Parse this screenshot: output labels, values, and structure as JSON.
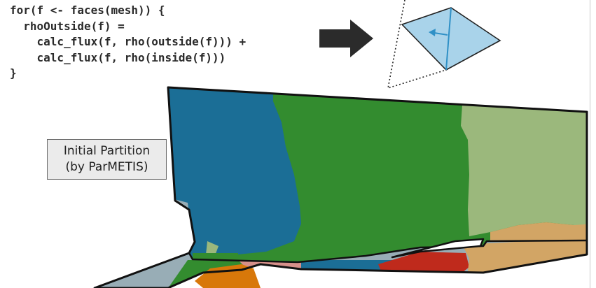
{
  "code": {
    "lines": [
      "for(f <- faces(mesh)) {",
      "  rhoOutside(f) =",
      "    calc_flux(f, rho(outside(f))) +",
      "    calc_flux(f, rho(inside(f)))",
      "}"
    ]
  },
  "label": {
    "line1": "Initial Partition",
    "line2": "(by ParMETIS)"
  },
  "icons": {
    "arrow": "right-arrow-icon",
    "tetrahedron": "tetrahedron-face-icon"
  },
  "colors": {
    "partition_blue": "#1b6e96",
    "partition_green": "#338c2f",
    "partition_light_green": "#9bb87c",
    "partition_tan": "#d2a565",
    "partition_gray": "#98adb6",
    "partition_red": "#bf2a1c",
    "partition_orange": "#d8780a",
    "partition_pink": "#d6908a",
    "tetra_fill": "#a9d3ea",
    "tetra_edge": "#2f90c6",
    "arrow": "#2b2b2b"
  }
}
